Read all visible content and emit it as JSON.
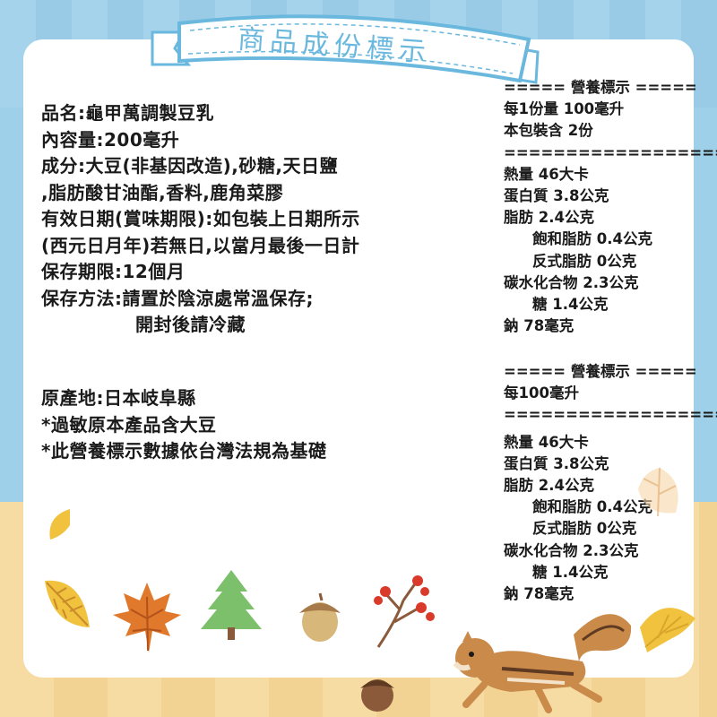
{
  "banner": {
    "title": "商品成份標示"
  },
  "product": {
    "lines": [
      "品名:龜甲萬調製豆乳",
      "內容量:200毫升",
      "成分:大豆(非基因改造),砂糖,天日鹽",
      ",脂肪酸甘油酯,香料,鹿角菜膠",
      "有效日期(賞味期限):如包裝上日期所示",
      "(西元日月年)若無日,以當月最後一日計",
      "保存期限:12個月",
      "保存方法:請置於陰涼處常溫保存;"
    ],
    "storage_continued": "開封後請冷藏"
  },
  "origin": {
    "lines": [
      "原產地:日本岐阜縣",
      "*過敏原本產品含大豆",
      "*此營養標示數據依台灣法規為基礎"
    ]
  },
  "nutrition_per_serving": {
    "header": "===== 營養標示 =====",
    "serving_size": "每1份量 100毫升",
    "servings": "本包裝含 2份",
    "divider": "==================",
    "calories": "熱量 46大卡",
    "protein": "蛋白質 3.8公克",
    "fat": "脂肪 2.4公克",
    "saturated_fat": "飽和脂肪 0.4公克",
    "trans_fat": "反式脂肪 0公克",
    "carbohydrate": "碳水化合物 2.3公克",
    "sugar": "糖 1.4公克",
    "sodium": "鈉 78毫克"
  },
  "nutrition_per_100ml": {
    "header": "===== 營養標示 =====",
    "basis": "每100毫升",
    "divider": "==================",
    "calories": "熱量 46大卡",
    "protein": "蛋白質 3.8公克",
    "fat": "脂肪 2.4公克",
    "saturated_fat": "飽和脂肪 0.4公克",
    "trans_fat": "反式脂肪 0公克",
    "carbohydrate": "碳水化合物 2.3公克",
    "sugar": "糖 1.4公克",
    "sodium": "鈉 78毫克"
  },
  "colors": {
    "ribbon": "#6ab8de",
    "leaf_yellow": "#f0c23e",
    "leaf_orange": "#e0792c",
    "tree_green": "#7cc06b",
    "acorn_brown": "#8a5a3a",
    "squirrel": "#c98a4a"
  }
}
